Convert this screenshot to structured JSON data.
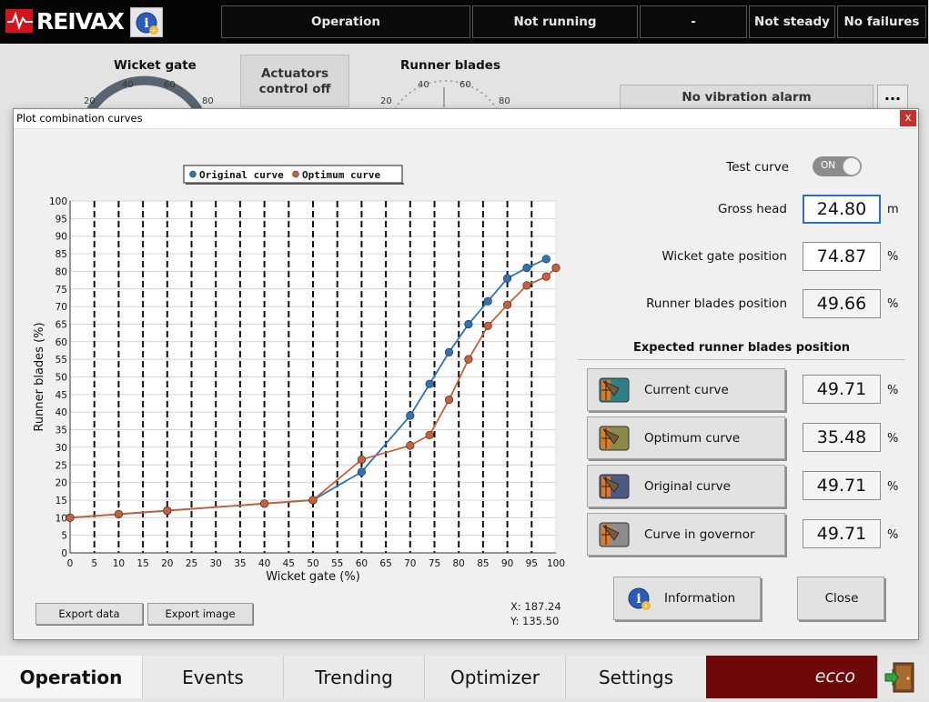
{
  "brand": {
    "name": "REIVAX"
  },
  "status_bar": {
    "mode": "Operation",
    "running": "Not running",
    "dash": "-",
    "steady": "Not steady",
    "failures": "No failures"
  },
  "dashboard": {
    "wicket_gate": {
      "title": "Wicket gate",
      "ticks": [
        "20",
        "40",
        "60",
        "80"
      ]
    },
    "actuators": {
      "line1": "Actuators",
      "line2": "control off"
    },
    "runner_blades": {
      "title": "Runner blades",
      "ticks": [
        "20",
        "40",
        "60",
        "80"
      ]
    },
    "vibration": {
      "label": "No vibration alarm",
      "more": "..."
    }
  },
  "dialog": {
    "title": "Plot combination curves",
    "close_glyph": "x",
    "export_data": "Export data",
    "export_image": "Export image",
    "cursor_x": "X: 187.24",
    "cursor_y": "Y: 135.50",
    "test_curve": {
      "label": "Test curve",
      "state": "ON"
    },
    "gross_head": {
      "label": "Gross head",
      "value": "24.80",
      "unit": "m"
    },
    "wicket_gate_position": {
      "label": "Wicket gate position",
      "value": "74.87",
      "unit": "%"
    },
    "runner_blades_position": {
      "label": "Runner blades position",
      "value": "49.66",
      "unit": "%"
    },
    "expected_title": "Expected runner blades position",
    "curves": [
      {
        "label": "Current curve",
        "value": "49.71",
        "unit": "%",
        "icon": "current-curve-icon",
        "color": "#2f7f86"
      },
      {
        "label": "Optimum curve",
        "value": "35.48",
        "unit": "%",
        "icon": "optimum-curve-icon",
        "color": "#8b8a4a"
      },
      {
        "label": "Original curve",
        "value": "49.71",
        "unit": "%",
        "icon": "original-curve-icon",
        "color": "#4d5a86"
      },
      {
        "label": "Curve in governor",
        "value": "49.71",
        "unit": "%",
        "icon": "governor-curve-icon",
        "color": "#8c8c8c"
      }
    ],
    "information_button": "Information",
    "close_button": "Close"
  },
  "tabs": {
    "operation": "Operation",
    "events": "Events",
    "trending": "Trending",
    "optimizer": "Optimizer",
    "settings": "Settings",
    "ecco": "ecco"
  },
  "chart_data": {
    "type": "line",
    "xlabel": "Wicket gate (%)",
    "ylabel": "Runner blades (%)",
    "xlim": [
      0,
      100
    ],
    "ylim": [
      0,
      100
    ],
    "xticks": [
      0,
      5,
      10,
      15,
      20,
      25,
      30,
      35,
      40,
      45,
      50,
      55,
      60,
      65,
      70,
      75,
      80,
      85,
      90,
      95,
      100
    ],
    "yticks": [
      0,
      5,
      10,
      15,
      20,
      25,
      30,
      35,
      40,
      45,
      50,
      55,
      60,
      65,
      70,
      75,
      80,
      85,
      90,
      95,
      100
    ],
    "vertical_dashed_lines": [
      5,
      10,
      15,
      20,
      25,
      30,
      35,
      40,
      45,
      50,
      55,
      60,
      65,
      70,
      75,
      80,
      85,
      90,
      95
    ],
    "grid": true,
    "legend_position": "top",
    "series": [
      {
        "name": "Original curve",
        "color": "#2d74b4",
        "x": [
          0,
          10,
          20,
          40,
          50,
          60,
          70,
          74,
          78,
          82,
          86,
          90,
          94,
          98
        ],
        "y": [
          10,
          11,
          12,
          14,
          15,
          23,
          39,
          48,
          57,
          65,
          71.5,
          78,
          81,
          83.5
        ]
      },
      {
        "name": "Optimum curve",
        "color": "#c8603a",
        "x": [
          0,
          10,
          20,
          40,
          50,
          60,
          70,
          74,
          78,
          82,
          86,
          90,
          94,
          98,
          100
        ],
        "y": [
          10,
          11,
          12,
          14,
          15,
          26.5,
          30.5,
          33.5,
          43.5,
          55,
          64.5,
          70.5,
          76,
          78.5,
          81
        ]
      }
    ]
  }
}
